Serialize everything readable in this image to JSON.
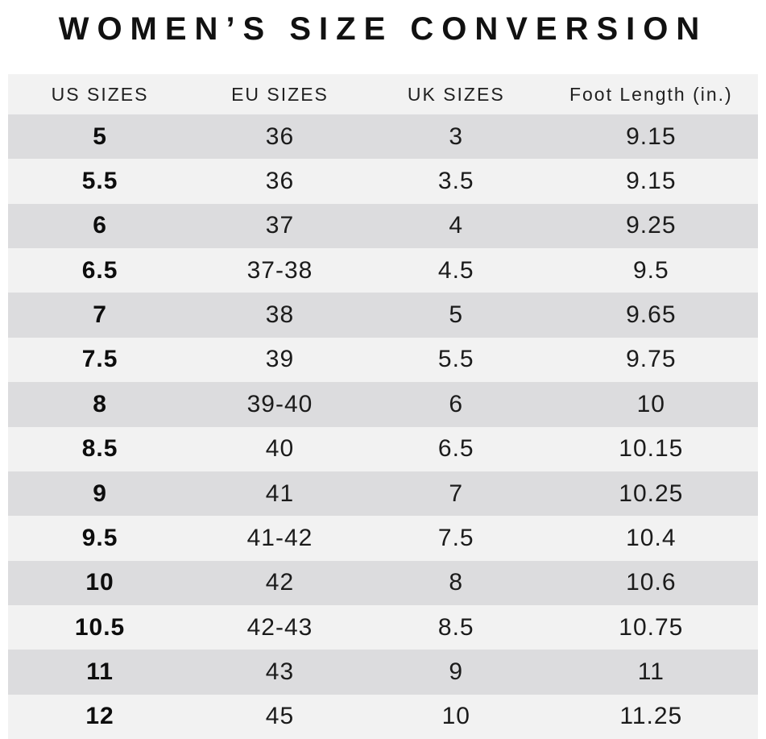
{
  "title": "WOMEN’S SIZE CONVERSION",
  "colors": {
    "row_dark": "#dcdcde",
    "row_light": "#f2f2f2",
    "header_bg": "#f2f2f2",
    "text": "#1b1b1b"
  },
  "chart_data": {
    "type": "table",
    "title": "WOMEN’S SIZE CONVERSION",
    "columns": [
      "US SIZES",
      "EU SIZES",
      "UK SIZES",
      "Foot Length (in.)"
    ],
    "rows": [
      [
        "5",
        "36",
        "3",
        "9.15"
      ],
      [
        "5.5",
        "36",
        "3.5",
        "9.15"
      ],
      [
        "6",
        "37",
        "4",
        "9.25"
      ],
      [
        "6.5",
        "37-38",
        "4.5",
        "9.5"
      ],
      [
        "7",
        "38",
        "5",
        "9.65"
      ],
      [
        "7.5",
        "39",
        "5.5",
        "9.75"
      ],
      [
        "8",
        "39-40",
        "6",
        "10"
      ],
      [
        "8.5",
        "40",
        "6.5",
        "10.15"
      ],
      [
        "9",
        "41",
        "7",
        "10.25"
      ],
      [
        "9.5",
        "41-42",
        "7.5",
        "10.4"
      ],
      [
        "10",
        "42",
        "8",
        "10.6"
      ],
      [
        "10.5",
        "42-43",
        "8.5",
        "10.75"
      ],
      [
        "11",
        "43",
        "9",
        "11"
      ],
      [
        "12",
        "45",
        "10",
        "11.25"
      ]
    ],
    "layout": {
      "row_striping": "first data row dark, alternating",
      "us_sizes_column_bold": true
    }
  }
}
